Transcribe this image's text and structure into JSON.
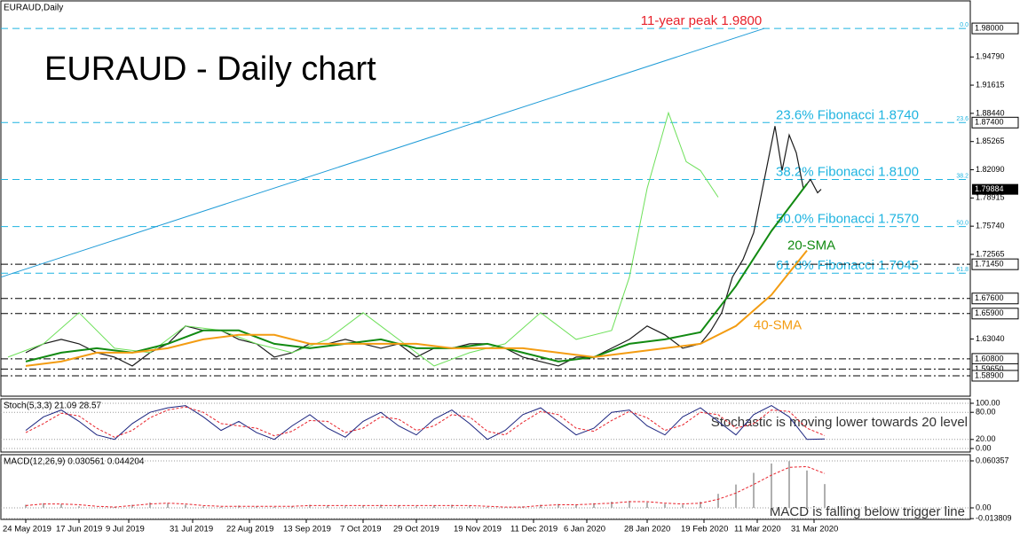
{
  "chart_data": [
    {
      "type": "line",
      "title": "EURAUD - Daily chart",
      "subtitle": "EURAUD,Daily",
      "xlim": [
        -7,
        266
      ],
      "ylim": [
        1.566,
        2.011
      ],
      "xticks": [
        {
          "value": 0,
          "label": "24 May 2019"
        },
        {
          "value": 15,
          "label": "17 Jun 2019"
        },
        {
          "value": 29,
          "label": "9 Jul 2019"
        },
        {
          "value": 47,
          "label": "31 Jul 2019"
        },
        {
          "value": 63,
          "label": "22 Aug 2019"
        },
        {
          "value": 79,
          "label": "13 Sep 2019"
        },
        {
          "value": 95,
          "label": "7 Oct 2019"
        },
        {
          "value": 110,
          "label": "29 Oct 2019"
        },
        {
          "value": 127,
          "label": "19 Nov 2019"
        },
        {
          "value": 143,
          "label": "11 Dec 2019"
        },
        {
          "value": 158,
          "label": "6 Jan 2020"
        },
        {
          "value": 175,
          "label": "28 Jan 2020"
        },
        {
          "value": 191,
          "label": "19 Feb 2020"
        },
        {
          "value": 206,
          "label": "11 Mar 2020"
        },
        {
          "value": 222,
          "label": "31 Mar 2020"
        }
      ],
      "yticks": [
        {
          "value": 1.9479,
          "label": "1.94790"
        },
        1.91615,
        {
          "value": 1.8844,
          "label": "1.88440"
        },
        1.85265,
        {
          "value": 1.8209,
          "label": "1.82090"
        },
        1.78915,
        {
          "value": 1.7574,
          "label": "1.75740"
        },
        1.72565,
        {
          "value": 1.6304,
          "label": "1.63040"
        }
      ],
      "level_lines": [
        {
          "value": 1.98,
          "label": "1.98000",
          "style": "dashed",
          "tag": "0.0",
          "text": "11-year peak 1.9800",
          "text_color": "#e8212a"
        },
        {
          "value": 1.874,
          "label": "1.87400",
          "style": "dashed",
          "tag": "23.6",
          "text": "23.6% Fibonacci 1.8740",
          "text_color": "#1fb4e0"
        },
        {
          "value": 1.81,
          "style": "dashed",
          "tag": "38.2",
          "text": "38.2% Fibonacci 1.8100",
          "text_color": "#1fb4e0"
        },
        {
          "value": 1.757,
          "style": "dashed",
          "tag": "50.0",
          "text": "50.0% Fibonacci 1.7570",
          "text_color": "#1fb4e0"
        },
        {
          "value": 1.7045,
          "style": "dashed",
          "tag": "61.8",
          "text": "61.8% Fibonacci 1.7045",
          "text_color": "#1fb4e0"
        },
        {
          "value": 1.7145,
          "label": "1.71450",
          "style": "dashdot"
        },
        {
          "value": 1.676,
          "label": "1.67600",
          "style": "dashdot"
        },
        {
          "value": 1.659,
          "label": "1.65900",
          "style": "dashdot"
        },
        {
          "value": 1.608,
          "label": "1.60800",
          "style": "dashdot"
        },
        {
          "value": 1.5965,
          "label": "1.59650",
          "style": "dashdot"
        },
        {
          "value": 1.589,
          "label": "1.58900",
          "style": "dashdot"
        }
      ],
      "last_price": {
        "value": 1.79884,
        "label": "1.79884"
      },
      "trendline": {
        "x": [
          -7,
          208
        ],
        "y": [
          1.7,
          1.98
        ],
        "color": "#1e9bd7"
      },
      "series": [
        {
          "color": "#1a1a1a",
          "width": 1.2,
          "x": [
            0,
            5,
            10,
            15,
            20,
            25,
            30,
            35,
            40,
            45,
            50,
            55,
            60,
            65,
            70,
            75,
            80,
            85,
            90,
            95,
            100,
            105,
            110,
            115,
            120,
            125,
            130,
            135,
            140,
            145,
            150,
            155,
            160,
            165,
            170,
            175,
            180,
            185,
            190,
            193,
            196,
            199,
            202,
            205,
            207,
            209,
            211,
            213,
            215,
            217,
            219,
            221,
            223,
            224
          ],
          "values": [
            1.615,
            1.625,
            1.63,
            1.625,
            1.615,
            1.61,
            1.6,
            1.615,
            1.625,
            1.645,
            1.64,
            1.64,
            1.63,
            1.625,
            1.61,
            1.615,
            1.625,
            1.625,
            1.63,
            1.625,
            1.62,
            1.625,
            1.61,
            1.62,
            1.62,
            1.625,
            1.625,
            1.62,
            1.61,
            1.605,
            1.6,
            1.61,
            1.61,
            1.62,
            1.63,
            1.645,
            1.635,
            1.62,
            1.625,
            1.64,
            1.66,
            1.7,
            1.72,
            1.75,
            1.79,
            1.83,
            1.87,
            1.82,
            1.86,
            1.84,
            1.8,
            1.81,
            1.795,
            1.79884
          ]
        },
        {
          "color": "#6ee05a",
          "width": 1,
          "x": [
            -5,
            5,
            15,
            25,
            35,
            45,
            55,
            65,
            75,
            85,
            95,
            105,
            115,
            125,
            135,
            145,
            155,
            165,
            170,
            175,
            181,
            186,
            190,
            195
          ],
          "values": [
            1.61,
            1.625,
            1.66,
            1.62,
            1.615,
            1.645,
            1.64,
            1.625,
            1.615,
            1.63,
            1.66,
            1.63,
            1.6,
            1.615,
            1.625,
            1.66,
            1.63,
            1.64,
            1.7,
            1.8,
            1.885,
            1.83,
            1.82,
            1.79
          ]
        },
        {
          "name": "20-SMA",
          "color": "#128a12",
          "width": 2,
          "x": [
            0,
            10,
            20,
            30,
            40,
            50,
            60,
            70,
            80,
            90,
            100,
            110,
            120,
            130,
            140,
            150,
            160,
            170,
            180,
            190,
            200,
            210,
            220
          ],
          "values": [
            1.605,
            1.615,
            1.62,
            1.615,
            1.625,
            1.64,
            1.64,
            1.625,
            1.62,
            1.625,
            1.63,
            1.62,
            1.62,
            1.625,
            1.615,
            1.605,
            1.61,
            1.625,
            1.63,
            1.638,
            1.69,
            1.752,
            1.805
          ]
        },
        {
          "name": "40-SMA",
          "color": "#f39c12",
          "width": 2,
          "x": [
            0,
            10,
            20,
            30,
            40,
            50,
            60,
            70,
            80,
            90,
            100,
            110,
            120,
            130,
            140,
            150,
            160,
            170,
            180,
            190,
            200,
            210,
            220
          ],
          "values": [
            1.6,
            1.605,
            1.615,
            1.615,
            1.62,
            1.63,
            1.635,
            1.635,
            1.625,
            1.625,
            1.625,
            1.625,
            1.62,
            1.62,
            1.62,
            1.615,
            1.61,
            1.615,
            1.62,
            1.625,
            1.645,
            1.68,
            1.73
          ]
        }
      ]
    },
    {
      "type": "line",
      "title": "Stoch(5,3,3) 21.09 28.57",
      "annotation": "Stochastic is moving lower towards 20 level",
      "xlim": [
        -7,
        266
      ],
      "ylim": [
        0,
        100
      ],
      "yticks": [
        {
          "value": 100,
          "label": "100.00"
        },
        {
          "value": 80,
          "label": "80.00"
        },
        {
          "value": 20,
          "label": "20.00"
        },
        {
          "value": 0,
          "label": "0.00"
        }
      ],
      "x": [
        0,
        5,
        10,
        15,
        20,
        25,
        30,
        35,
        40,
        45,
        50,
        55,
        60,
        65,
        70,
        75,
        80,
        85,
        90,
        95,
        100,
        105,
        110,
        115,
        120,
        125,
        130,
        135,
        140,
        145,
        150,
        155,
        160,
        165,
        170,
        175,
        180,
        185,
        190,
        195,
        200,
        205,
        210,
        215,
        220,
        225
      ],
      "series": [
        {
          "color": "#1a237e",
          "style": "solid",
          "values": [
            40,
            70,
            85,
            60,
            30,
            20,
            55,
            80,
            90,
            95,
            70,
            40,
            60,
            35,
            20,
            50,
            75,
            45,
            25,
            60,
            80,
            50,
            30,
            65,
            85,
            55,
            20,
            40,
            75,
            90,
            60,
            30,
            45,
            80,
            85,
            50,
            30,
            70,
            90,
            60,
            30,
            75,
            95,
            70,
            20,
            21.09
          ]
        },
        {
          "color": "#e8212a",
          "style": "dashed",
          "values": [
            35,
            55,
            78,
            72,
            45,
            25,
            40,
            68,
            85,
            92,
            80,
            55,
            50,
            45,
            28,
            38,
            62,
            60,
            35,
            45,
            70,
            65,
            40,
            50,
            75,
            70,
            38,
            30,
            58,
            82,
            75,
            45,
            38,
            62,
            82,
            68,
            40,
            52,
            80,
            75,
            45,
            55,
            85,
            82,
            45,
            28.57
          ]
        }
      ]
    },
    {
      "type": "line",
      "title": "MACD(12,26,9) 0.030561 0.044204",
      "annotation": "MACD is falling below trigger line",
      "xlim": [
        -7,
        266
      ],
      "ylim": [
        -0.0148,
        0.0683
      ],
      "yticks": [
        0.060357,
        {
          "value": 0,
          "label": "0.00"
        },
        -0.013809
      ],
      "x": [
        0,
        5,
        10,
        15,
        20,
        25,
        30,
        35,
        40,
        45,
        50,
        55,
        60,
        65,
        70,
        75,
        80,
        85,
        90,
        95,
        100,
        105,
        110,
        115,
        120,
        125,
        130,
        135,
        140,
        145,
        150,
        155,
        160,
        165,
        170,
        175,
        180,
        185,
        190,
        195,
        200,
        205,
        210,
        215,
        220,
        225
      ],
      "series": [
        {
          "color": "#b0b0b0",
          "style": "bar",
          "values": [
            0.004,
            0.006,
            0.005,
            0.002,
            0.0,
            0.001,
            0.004,
            0.007,
            0.006,
            0.004,
            0.002,
            0.001,
            0.003,
            0.002,
            0.001,
            0.002,
            0.004,
            0.003,
            0.002,
            0.003,
            0.004,
            0.003,
            0.002,
            0.003,
            0.004,
            0.003,
            0.001,
            0.0,
            0.002,
            0.004,
            0.005,
            0.004,
            0.006,
            0.008,
            0.009,
            0.007,
            0.005,
            0.004,
            0.008,
            0.018,
            0.03,
            0.045,
            0.057,
            0.06,
            0.048,
            0.030561
          ]
        },
        {
          "color": "#e8212a",
          "style": "dashed",
          "values": [
            0.003,
            0.005,
            0.005,
            0.004,
            0.002,
            0.001,
            0.003,
            0.005,
            0.006,
            0.005,
            0.003,
            0.002,
            0.002,
            0.002,
            0.002,
            0.002,
            0.003,
            0.003,
            0.003,
            0.003,
            0.003,
            0.003,
            0.003,
            0.003,
            0.003,
            0.003,
            0.002,
            0.001,
            0.001,
            0.003,
            0.004,
            0.004,
            0.005,
            0.006,
            0.008,
            0.008,
            0.006,
            0.005,
            0.006,
            0.011,
            0.019,
            0.03,
            0.042,
            0.052,
            0.053,
            0.044204
          ]
        }
      ]
    }
  ]
}
